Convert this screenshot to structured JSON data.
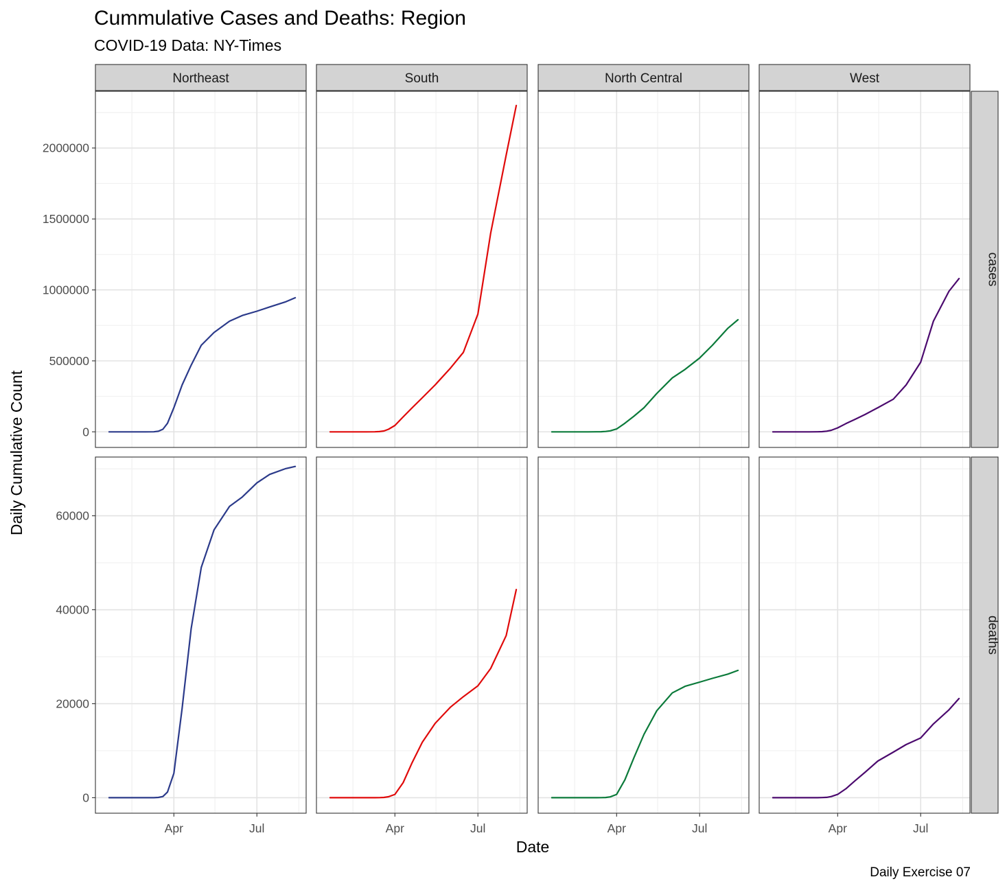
{
  "chart_data": {
    "type": "line",
    "title": "Cummulative Cases and Deaths: Region",
    "subtitle": "COVID-19 Data: NY-Times",
    "xlabel": "Date",
    "ylabel": "Daily Cumulative Count",
    "caption": "Daily Exercise 07",
    "x_ticks": [
      "Apr",
      "Jul"
    ],
    "x_tick_dates": [
      "2020-04-01",
      "2020-07-01"
    ],
    "x_range": [
      "2020-01-06",
      "2020-08-24"
    ],
    "dates": [
      "2020-01-21",
      "2020-02-01",
      "2020-02-15",
      "2020-03-01",
      "2020-03-10",
      "2020-03-15",
      "2020-03-20",
      "2020-03-25",
      "2020-04-01",
      "2020-04-10",
      "2020-04-20",
      "2020-05-01",
      "2020-05-15",
      "2020-06-01",
      "2020-06-15",
      "2020-07-01",
      "2020-07-15",
      "2020-08-01",
      "2020-08-12"
    ],
    "facet_columns": [
      "Northeast",
      "South",
      "North Central",
      "West"
    ],
    "facet_rows": [
      "cases",
      "deaths"
    ],
    "grid": true,
    "legend": "none",
    "panels": [
      {
        "metric": "cases",
        "y_ticks": [
          0,
          500000,
          1000000,
          1500000,
          2000000
        ],
        "ylim": [
          -110000,
          2400000
        ],
        "series": [
          {
            "name": "Northeast",
            "color": "#2b3a8a",
            "values": [
              0,
              0,
              0,
              0,
              200,
              4000,
              18000,
              60000,
              170000,
              330000,
              470000,
              610000,
              700000,
              780000,
              820000,
              850000,
              880000,
              915000,
              945000
            ]
          },
          {
            "name": "South",
            "color": "#e00a0a",
            "values": [
              0,
              0,
              0,
              0,
              100,
              1500,
              6000,
              18000,
              45000,
              105000,
              170000,
              240000,
              330000,
              450000,
              560000,
              830000,
              1400000,
              1950000,
              2300000
            ]
          },
          {
            "name": "North Central",
            "color": "#0b7a3a",
            "values": [
              0,
              0,
              0,
              0,
              60,
              700,
              2500,
              7000,
              20000,
              60000,
              110000,
              170000,
              270000,
              380000,
              440000,
              520000,
              610000,
              730000,
              790000
            ]
          },
          {
            "name": "West",
            "color": "#4b0a6e",
            "values": [
              0,
              0,
              0,
              0,
              150,
              1400,
              4500,
              11000,
              28000,
              58000,
              88000,
              122000,
              170000,
              230000,
              330000,
              490000,
              780000,
              990000,
              1080000
            ]
          }
        ]
      },
      {
        "metric": "deaths",
        "y_ticks": [
          0,
          20000,
          40000,
          60000
        ],
        "ylim": [
          -3300,
          72500
        ],
        "series": [
          {
            "name": "Northeast",
            "color": "#2b3a8a",
            "values": [
              0,
              0,
              0,
              0,
              5,
              60,
              250,
              1200,
              5200,
              19000,
              36000,
              49000,
              57000,
              62000,
              64000,
              67000,
              68800,
              70000,
              70500
            ]
          },
          {
            "name": "South",
            "color": "#e00a0a",
            "values": [
              0,
              0,
              0,
              0,
              1,
              15,
              60,
              200,
              700,
              3200,
              7500,
              11800,
              15800,
              19300,
              21500,
              23800,
              27500,
              34500,
              44300
            ]
          },
          {
            "name": "North Central",
            "color": "#0b7a3a",
            "values": [
              0,
              0,
              0,
              0,
              1,
              10,
              50,
              180,
              700,
              3800,
              8500,
              13500,
              18500,
              22300,
              23700,
              24600,
              25400,
              26300,
              27100
            ]
          },
          {
            "name": "West",
            "color": "#4b0a6e",
            "values": [
              0,
              0,
              0,
              0,
              5,
              25,
              80,
              250,
              700,
              1900,
              3600,
              5400,
              7800,
              9700,
              11300,
              12700,
              15700,
              18700,
              21100
            ]
          }
        ]
      }
    ]
  }
}
